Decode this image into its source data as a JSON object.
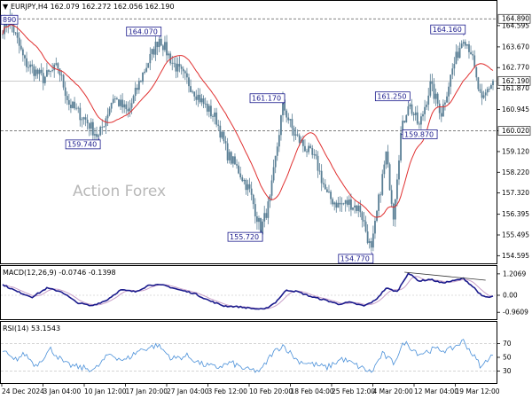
{
  "chart_data": {
    "type": "candlestick",
    "symbol_header": "EURJPY,H4",
    "ohlc": {
      "open": "162.079",
      "high": "162.272",
      "low": "162.056",
      "close": "162.190"
    },
    "watermark": "Action Forex",
    "price_axis": {
      "ticks": [
        "164.595",
        "163.670",
        "162.770",
        "161.870",
        "160.945",
        "160.020",
        "159.120",
        "158.220",
        "157.320",
        "156.395",
        "155.495",
        "154.595"
      ],
      "ylim": [
        154.3,
        165.4
      ]
    },
    "current_price": "162.190",
    "horizontal_levels": [
      {
        "label": "164.890",
        "style": "dashed"
      },
      {
        "label": "160.020",
        "style": "dashed"
      }
    ],
    "time_axis": [
      "24 Dec 2024",
      "3 Jan 04:00",
      "10 Jan 12:00",
      "17 Jan 20:00",
      "27 Jan 04:00",
      "3 Feb 12:00",
      "10 Feb 20:00",
      "18 Feb 04:00",
      "25 Feb 12:00",
      "4 Mar 20:00",
      "12 Mar 04:00",
      "19 Mar 12:00"
    ],
    "price_anchors": [
      {
        "i": 0,
        "v": 164.5
      },
      {
        "i": 4,
        "v": 164.85
      },
      {
        "i": 12,
        "v": 163.0
      },
      {
        "i": 22,
        "v": 162.3
      },
      {
        "i": 30,
        "v": 162.8
      },
      {
        "i": 36,
        "v": 161.2
      },
      {
        "i": 45,
        "v": 160.5
      },
      {
        "i": 52,
        "v": 159.74
      },
      {
        "i": 60,
        "v": 161.5
      },
      {
        "i": 68,
        "v": 160.8
      },
      {
        "i": 76,
        "v": 162.5
      },
      {
        "i": 85,
        "v": 164.07
      },
      {
        "i": 92,
        "v": 163.0
      },
      {
        "i": 100,
        "v": 162.2
      },
      {
        "i": 108,
        "v": 161.3
      },
      {
        "i": 116,
        "v": 160.5
      },
      {
        "i": 122,
        "v": 159.0
      },
      {
        "i": 128,
        "v": 158.3
      },
      {
        "i": 134,
        "v": 157.4
      },
      {
        "i": 140,
        "v": 155.72
      },
      {
        "i": 145,
        "v": 157.0
      },
      {
        "i": 152,
        "v": 161.17
      },
      {
        "i": 158,
        "v": 159.9
      },
      {
        "i": 164,
        "v": 159.3
      },
      {
        "i": 170,
        "v": 158.7
      },
      {
        "i": 176,
        "v": 157.2
      },
      {
        "i": 182,
        "v": 156.8
      },
      {
        "i": 188,
        "v": 156.9
      },
      {
        "i": 194,
        "v": 156.6
      },
      {
        "i": 200,
        "v": 154.77
      },
      {
        "i": 204,
        "v": 157.0
      },
      {
        "i": 208,
        "v": 159.0
      },
      {
        "i": 212,
        "v": 156.4
      },
      {
        "i": 216,
        "v": 159.87
      },
      {
        "i": 220,
        "v": 161.25
      },
      {
        "i": 226,
        "v": 160.2
      },
      {
        "i": 232,
        "v": 162.0
      },
      {
        "i": 238,
        "v": 160.8
      },
      {
        "i": 244,
        "v": 162.7
      },
      {
        "i": 250,
        "v": 164.16
      },
      {
        "i": 254,
        "v": 163.5
      },
      {
        "i": 257,
        "v": 162.2
      },
      {
        "i": 260,
        "v": 161.2
      },
      {
        "i": 263,
        "v": 161.8
      },
      {
        "i": 266,
        "v": 162.19
      }
    ],
    "annotations": [
      {
        "label": "164.070",
        "i": 85,
        "v": 164.07,
        "side": "above-left"
      },
      {
        "label": "159.740",
        "i": 52,
        "v": 159.74,
        "side": "below-left"
      },
      {
        "label": "161.170",
        "i": 152,
        "v": 161.17,
        "side": "above-left"
      },
      {
        "label": "155.720",
        "i": 140,
        "v": 155.72,
        "side": "below-left"
      },
      {
        "label": "154.770",
        "i": 200,
        "v": 154.77,
        "side": "below-left"
      },
      {
        "label": "161.250",
        "i": 220,
        "v": 161.25,
        "side": "above-left"
      },
      {
        "label": "159.870",
        "i": 216,
        "v": 159.87,
        "side": "right"
      },
      {
        "label": "164.160",
        "i": 250,
        "v": 164.16,
        "side": "above-left"
      },
      {
        "label": "890",
        "i": 0,
        "v": 164.85,
        "side": "clip"
      }
    ],
    "macd": {
      "header": "MACD(12,26,9) -0.0746 -0.1398",
      "ticks": [
        "1.2069",
        "0.00",
        "-0.9609"
      ],
      "ylim": [
        -1.25,
        1.5
      ],
      "anchors": [
        {
          "i": 0,
          "v": 0.6
        },
        {
          "i": 8,
          "v": 0.2
        },
        {
          "i": 16,
          "v": -0.1
        },
        {
          "i": 24,
          "v": 0.4
        },
        {
          "i": 32,
          "v": 0.2
        },
        {
          "i": 40,
          "v": -0.4
        },
        {
          "i": 48,
          "v": -0.6
        },
        {
          "i": 56,
          "v": -0.3
        },
        {
          "i": 64,
          "v": 0.3
        },
        {
          "i": 72,
          "v": 0.2
        },
        {
          "i": 80,
          "v": 0.6
        },
        {
          "i": 88,
          "v": 0.55
        },
        {
          "i": 96,
          "v": 0.3
        },
        {
          "i": 104,
          "v": 0.1
        },
        {
          "i": 112,
          "v": -0.3
        },
        {
          "i": 120,
          "v": -0.6
        },
        {
          "i": 128,
          "v": -0.65
        },
        {
          "i": 136,
          "v": -0.75
        },
        {
          "i": 142,
          "v": -0.8
        },
        {
          "i": 148,
          "v": -0.4
        },
        {
          "i": 154,
          "v": 0.3
        },
        {
          "i": 160,
          "v": 0.2
        },
        {
          "i": 168,
          "v": -0.1
        },
        {
          "i": 176,
          "v": -0.3
        },
        {
          "i": 182,
          "v": -0.5
        },
        {
          "i": 188,
          "v": -0.4
        },
        {
          "i": 196,
          "v": -0.6
        },
        {
          "i": 202,
          "v": -0.3
        },
        {
          "i": 208,
          "v": 0.4
        },
        {
          "i": 214,
          "v": 0.2
        },
        {
          "i": 220,
          "v": 1.25
        },
        {
          "i": 226,
          "v": 0.8
        },
        {
          "i": 232,
          "v": 0.9
        },
        {
          "i": 238,
          "v": 0.7
        },
        {
          "i": 244,
          "v": 0.8
        },
        {
          "i": 250,
          "v": 0.95
        },
        {
          "i": 256,
          "v": 0.4
        },
        {
          "i": 260,
          "v": -0.05
        },
        {
          "i": 264,
          "v": -0.12
        },
        {
          "i": 266,
          "v": -0.07
        }
      ]
    },
    "rsi": {
      "header": "RSI(14) 53.1543",
      "ticks": [
        "70",
        "50",
        "30"
      ],
      "ylim": [
        15,
        85
      ],
      "anchors": [
        {
          "i": 0,
          "v": 60
        },
        {
          "i": 6,
          "v": 45
        },
        {
          "i": 12,
          "v": 55
        },
        {
          "i": 18,
          "v": 38
        },
        {
          "i": 26,
          "v": 62
        },
        {
          "i": 34,
          "v": 40
        },
        {
          "i": 42,
          "v": 35
        },
        {
          "i": 50,
          "v": 32
        },
        {
          "i": 58,
          "v": 55
        },
        {
          "i": 66,
          "v": 45
        },
        {
          "i": 74,
          "v": 60
        },
        {
          "i": 84,
          "v": 68
        },
        {
          "i": 92,
          "v": 48
        },
        {
          "i": 100,
          "v": 52
        },
        {
          "i": 108,
          "v": 40
        },
        {
          "i": 116,
          "v": 35
        },
        {
          "i": 124,
          "v": 42
        },
        {
          "i": 132,
          "v": 32
        },
        {
          "i": 140,
          "v": 30
        },
        {
          "i": 146,
          "v": 55
        },
        {
          "i": 152,
          "v": 68
        },
        {
          "i": 160,
          "v": 45
        },
        {
          "i": 168,
          "v": 40
        },
        {
          "i": 176,
          "v": 35
        },
        {
          "i": 184,
          "v": 48
        },
        {
          "i": 192,
          "v": 38
        },
        {
          "i": 200,
          "v": 28
        },
        {
          "i": 206,
          "v": 55
        },
        {
          "i": 212,
          "v": 42
        },
        {
          "i": 218,
          "v": 72
        },
        {
          "i": 226,
          "v": 55
        },
        {
          "i": 234,
          "v": 62
        },
        {
          "i": 242,
          "v": 60
        },
        {
          "i": 250,
          "v": 74
        },
        {
          "i": 256,
          "v": 50
        },
        {
          "i": 260,
          "v": 35
        },
        {
          "i": 263,
          "v": 48
        },
        {
          "i": 266,
          "v": 53
        }
      ]
    },
    "colors": {
      "candle": "#5a7f95",
      "ma": "#e03030",
      "macd": "#1a1a8c",
      "signal": "#c8a0c8",
      "rsi": "#4a90d9",
      "level": "#555555",
      "grid": "#bbbbbb"
    }
  }
}
